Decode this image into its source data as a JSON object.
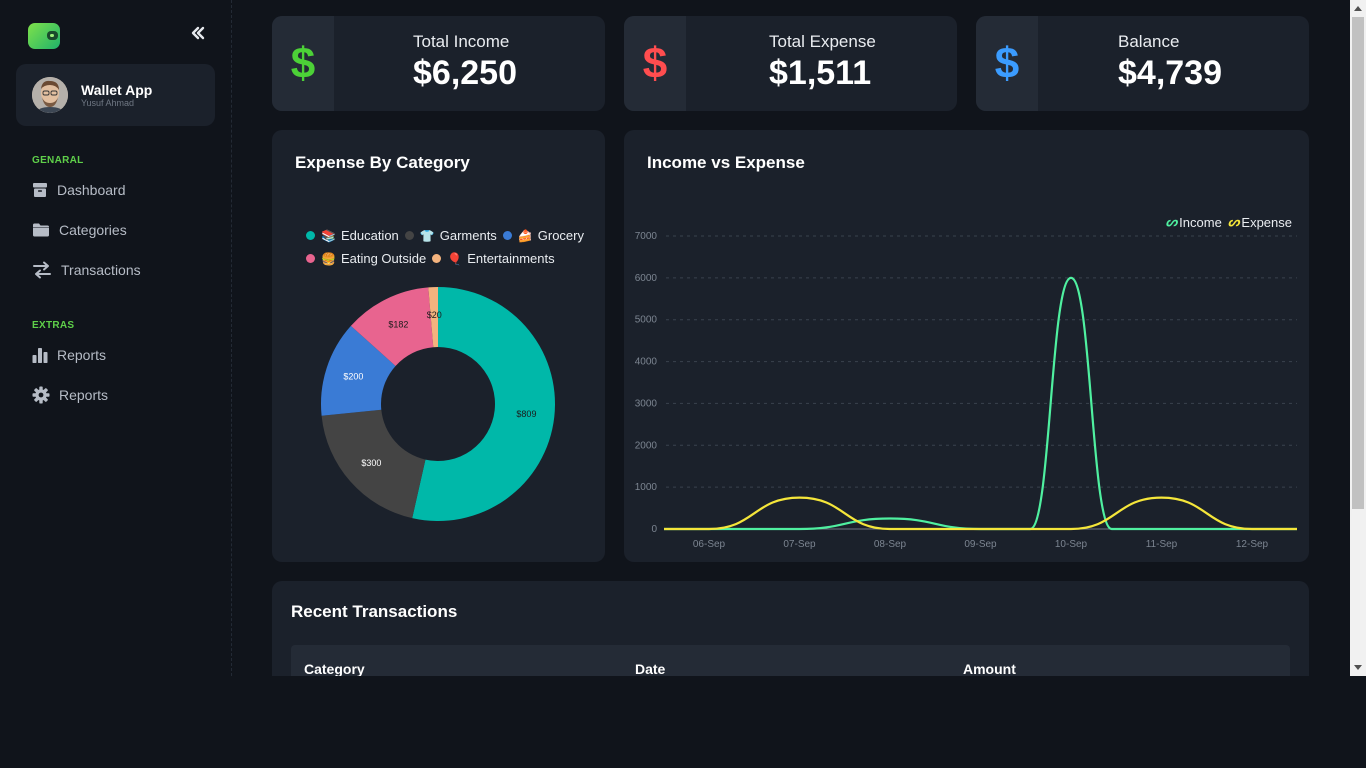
{
  "app": {
    "name": "Wallet App",
    "user": "Yusuf Ahmad"
  },
  "sidebar": {
    "sections": [
      {
        "title": "GENARAL",
        "items": [
          {
            "label": "Dashboard",
            "icon": "archive-box-icon"
          },
          {
            "label": "Categories",
            "icon": "folder-icon"
          },
          {
            "label": "Transactions",
            "icon": "swap-arrows-icon"
          }
        ]
      },
      {
        "title": "EXTRAS",
        "items": [
          {
            "label": "Reports",
            "icon": "bar-chart-icon"
          },
          {
            "label": "Reports",
            "icon": "gear-icon"
          }
        ]
      }
    ]
  },
  "stats": [
    {
      "label": "Total Income",
      "value": "$6,250",
      "icon": "dollar-icon",
      "color": "#4cd137"
    },
    {
      "label": "Total Expense",
      "value": "$1,511",
      "icon": "dollar-icon",
      "color": "#ff4d4f"
    },
    {
      "label": "Balance",
      "value": "$4,739",
      "icon": "dollar-icon",
      "color": "#3b9cff"
    }
  ],
  "colors": {
    "accent": "#5fd04a",
    "card": "#1b212b",
    "background": "#10141b",
    "income": "#4ff0a0",
    "expense": "#f5e63a"
  },
  "chart_data": [
    {
      "type": "pie",
      "title": "Expense By Category",
      "donut": true,
      "legend_placement": "top",
      "categories": [
        "Education",
        "Garments",
        "Grocery",
        "Eating Outside",
        "Entertainments"
      ],
      "emojis": [
        "📚",
        "👕",
        "🍰",
        "🍔",
        "🎈"
      ],
      "values": [
        809,
        300,
        200,
        182,
        20
      ],
      "labels": [
        "$809",
        "$300",
        "$200",
        "$182",
        "$20"
      ],
      "colors": [
        "#00b8a9",
        "#444444",
        "#3a7bd5",
        "#e8648f",
        "#f4b37e"
      ]
    },
    {
      "type": "line",
      "title": "Income vs Expense",
      "x": [
        "06-Sep",
        "07-Sep",
        "08-Sep",
        "09-Sep",
        "10-Sep",
        "11-Sep",
        "12-Sep"
      ],
      "ylim": [
        0,
        7000
      ],
      "yticks": [
        0,
        1000,
        2000,
        3000,
        4000,
        5000,
        6000,
        7000
      ],
      "grid": true,
      "legend_placement": "top-right",
      "series": [
        {
          "name": "Income",
          "color": "#4ff0a0",
          "values": [
            0,
            0,
            250,
            0,
            6000,
            0,
            0
          ]
        },
        {
          "name": "Expense",
          "color": "#f5e63a",
          "values": [
            0,
            750,
            0,
            0,
            0,
            750,
            0
          ]
        }
      ]
    }
  ],
  "recent": {
    "title": "Recent Transactions",
    "columns": [
      "Category",
      "Date",
      "Amount"
    ]
  }
}
